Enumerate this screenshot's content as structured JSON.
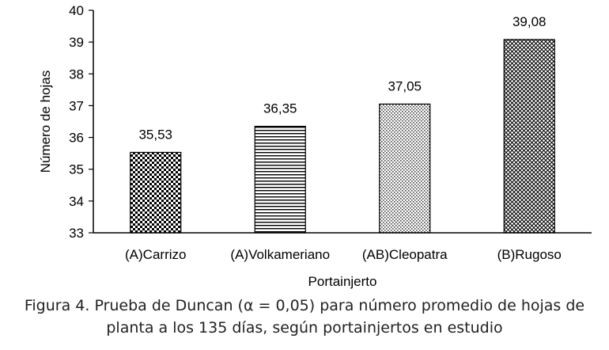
{
  "chart_data": {
    "type": "bar",
    "categories": [
      "(A)Carrizo",
      "(A)Volkameriano",
      "(AB)Cleopatra",
      "(B)Rugoso"
    ],
    "values": [
      35.53,
      36.35,
      37.05,
      39.08
    ],
    "data_labels": [
      "35,53",
      "36,35",
      "37,05",
      "39,08"
    ],
    "patterns": [
      "checker",
      "hlines",
      "dots",
      "diamond"
    ],
    "xlabel": "Portainjerto",
    "ylabel": "Número de hojas",
    "ylim": [
      33,
      40
    ],
    "yticks": [
      "33",
      "34",
      "35",
      "36",
      "37",
      "38",
      "39",
      "40"
    ],
    "grid": false,
    "legend": "none"
  },
  "caption": {
    "line1": "Figura 4. Prueba de Duncan (α = 0,05) para número promedio de hojas de",
    "line2": "planta a los 135 días, según portainjertos en estudio"
  }
}
